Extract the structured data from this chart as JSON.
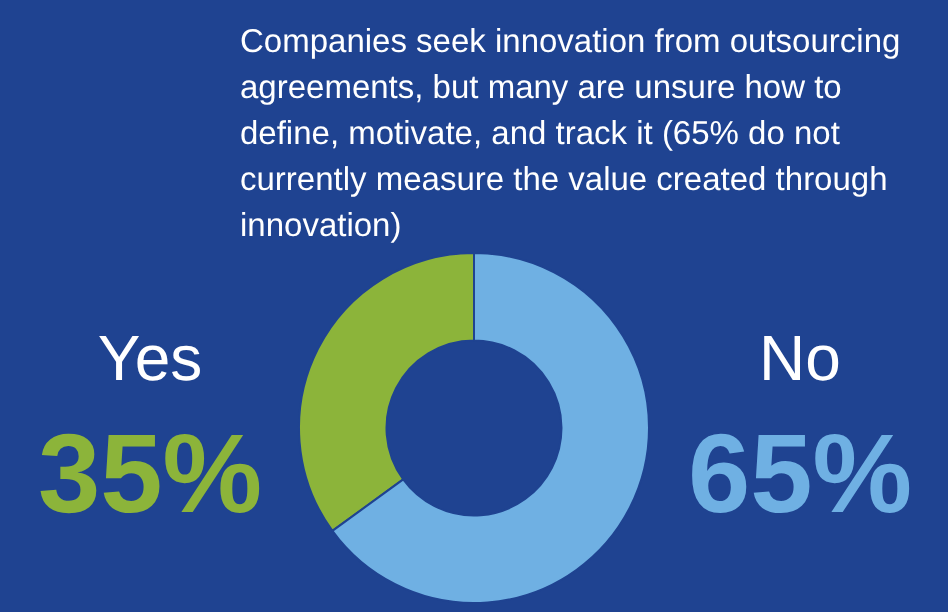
{
  "chart_data": {
    "type": "donut",
    "title": "Companies seek innovation from outsourcing agreements, but many are unsure how to define, motivate, and track it (65% do not currently measure the value created through innovation)",
    "categories": [
      "Yes",
      "No"
    ],
    "values": [
      35,
      65
    ],
    "colors": [
      "#8cb43a",
      "#6fb0e3"
    ],
    "value_labels": [
      "35%",
      "65%"
    ],
    "legend": false
  }
}
